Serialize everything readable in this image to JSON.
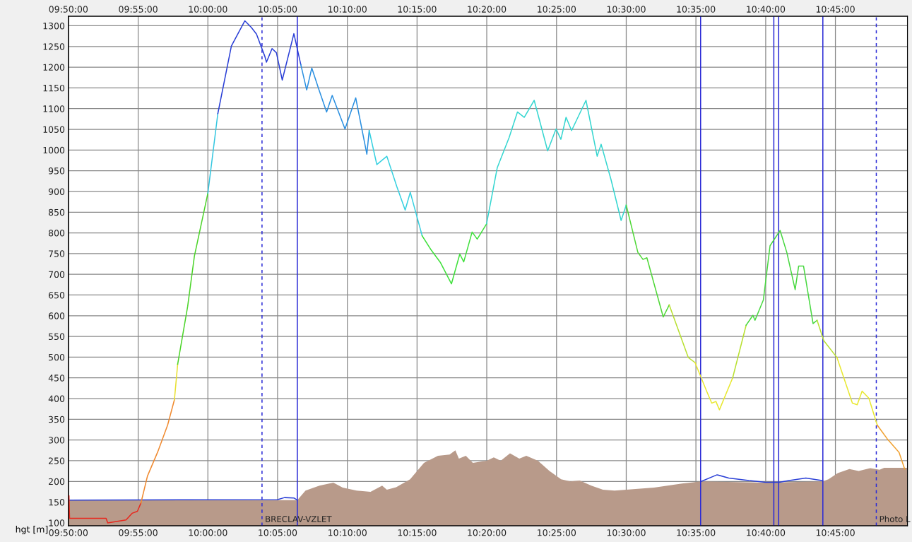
{
  "chart_data": {
    "type": "line",
    "ylabel": "hgt [m]",
    "xlim": [
      9.8333,
      10.8361
    ],
    "ylim": [
      93,
      1323
    ],
    "xticks": [
      {
        "value": 9.8333,
        "label": "09:50:00"
      },
      {
        "value": 9.9167,
        "label": "09:55:00"
      },
      {
        "value": 10.0,
        "label": "10:00:00"
      },
      {
        "value": 10.0833,
        "label": "10:05:00"
      },
      {
        "value": 10.1667,
        "label": "10:10:00"
      },
      {
        "value": 10.25,
        "label": "10:15:00"
      },
      {
        "value": 10.3333,
        "label": "10:20:00"
      },
      {
        "value": 10.4167,
        "label": "10:25:00"
      },
      {
        "value": 10.5,
        "label": "10:30:00"
      },
      {
        "value": 10.5833,
        "label": "10:35:00"
      },
      {
        "value": 10.6667,
        "label": "10:40:00"
      },
      {
        "value": 10.75,
        "label": "10:45:00"
      }
    ],
    "x2lim": [
      9.8333,
      10.8361
    ],
    "x2ticks": [
      {
        "value": 9.8333,
        "label": "09:50:00"
      },
      {
        "value": 9.9167,
        "label": "09:55:00"
      },
      {
        "value": 10.0,
        "label": "10:00:00"
      },
      {
        "value": 10.0833,
        "label": "10:05:00"
      },
      {
        "value": 10.1667,
        "label": "10:10:00"
      },
      {
        "value": 10.25,
        "label": "10:15:00"
      },
      {
        "value": 10.3333,
        "label": "10:20:00"
      },
      {
        "value": 10.4167,
        "label": "10:25:00"
      },
      {
        "value": 10.5,
        "label": "10:30:00"
      },
      {
        "value": 10.5833,
        "label": "10:35:00"
      },
      {
        "value": 10.6667,
        "label": "10:40:00"
      },
      {
        "value": 10.75,
        "label": "10:45:00"
      }
    ],
    "yticks": [
      100,
      150,
      200,
      250,
      300,
      350,
      400,
      450,
      500,
      550,
      600,
      650,
      700,
      750,
      800,
      850,
      900,
      950,
      1000,
      1050,
      1100,
      1150,
      1200,
      1250,
      1300
    ],
    "grid": true,
    "line_style": "solid",
    "marker": "none",
    "series": [
      {
        "type": "area",
        "color": "#b89a8a",
        "x": [
          9.8333,
          10.1069,
          10.1167,
          10.1333,
          10.15,
          10.1611,
          10.1778,
          10.1944,
          10.2083,
          10.2139,
          10.225,
          10.2417,
          10.2583,
          10.275,
          10.2889,
          10.2958,
          10.3,
          10.3083,
          10.3167,
          10.3333,
          10.3417,
          10.35,
          10.3611,
          10.3722,
          10.3806,
          10.3944,
          10.4083,
          10.4222,
          10.4333,
          10.4444,
          10.4583,
          10.4722,
          10.4861,
          10.5,
          10.5333,
          10.5667,
          10.5897,
          10.6667,
          10.7347,
          10.7417,
          10.7528,
          10.7667,
          10.7778,
          10.7917,
          10.8028,
          10.8083,
          10.8361
        ],
        "values": [
          155,
          155,
          178,
          190,
          197,
          185,
          178,
          175,
          190,
          180,
          186,
          205,
          245,
          262,
          265,
          275,
          255,
          262,
          245,
          250,
          258,
          250,
          268,
          255,
          262,
          250,
          225,
          205,
          200,
          202,
          190,
          180,
          178,
          180,
          185,
          195,
          200,
          197,
          200,
          205,
          220,
          230,
          225,
          232,
          228,
          233,
          233
        ]
      },
      {
        "color": "#2a3fd6",
        "x": [
          9.8333,
          10.0833,
          10.0917,
          10.1028,
          10.1069
        ],
        "values": [
          155,
          156,
          161,
          160,
          155
        ]
      },
      {
        "type": "line",
        "color": "#2a3fd6",
        "x": [
          10.5897,
          10.6086,
          10.6225,
          10.6467,
          10.6667,
          10.6828,
          10.6947,
          10.7147,
          10.7347
        ],
        "values": [
          200,
          216,
          208,
          202,
          198,
          198,
          202,
          208,
          202
        ]
      },
      {
        "type": "line",
        "color": "#e8281e",
        "x": [
          9.834,
          9.8347,
          9.8783,
          9.8803,
          9.9022,
          9.9094,
          9.9158,
          9.92
        ],
        "values": [
          165,
          111,
          111,
          100,
          107,
          123,
          128,
          148
        ]
      },
      {
        "type": "line",
        "color": "#f08a30",
        "x": [
          9.92,
          9.9278,
          9.94,
          9.9519,
          9.96
        ],
        "values": [
          148,
          213,
          271,
          336,
          397
        ]
      },
      {
        "type": "line",
        "color": "#e8e030",
        "x": [
          9.96,
          9.9639
        ],
        "values": [
          397,
          483
        ]
      },
      {
        "type": "line",
        "color": "#4cd42a",
        "x": [
          9.9639,
          9.9758,
          9.9839,
          10.0
        ],
        "values": [
          483,
          622,
          744,
          896
        ]
      },
      {
        "type": "line",
        "color": "#33c6e0",
        "x": [
          10.0,
          10.0119
        ],
        "values": [
          896,
          1088
        ]
      },
      {
        "type": "line",
        "color": "#2a3fd6",
        "x": [
          10.0119,
          10.0281,
          10.0442,
          10.0519,
          10.0581,
          10.0681,
          10.07,
          10.0767,
          10.0819,
          10.0889,
          10.1028,
          10.1111
        ],
        "values": [
          1088,
          1251,
          1312,
          1296,
          1280,
          1226,
          1212,
          1245,
          1235,
          1169,
          1281,
          1206
        ]
      },
      {
        "type": "line",
        "color": "#2a8fe0",
        "x": [
          10.1111,
          10.1181,
          10.1242,
          10.1322,
          10.1419,
          10.1486,
          10.1639,
          10.1767,
          10.19,
          10.1928
        ],
        "values": [
          1206,
          1145,
          1198,
          1149,
          1092,
          1132,
          1051,
          1126,
          990,
          1047
        ]
      },
      {
        "type": "line",
        "color": "#35d0e0",
        "x": [
          10.1928,
          10.2019,
          10.2139,
          10.2258,
          10.2358,
          10.2419,
          10.2561
        ],
        "values": [
          1047,
          965,
          985,
          912,
          855,
          898,
          793
        ]
      },
      {
        "type": "line",
        "color": "#3ee03a",
        "x": [
          10.2561,
          10.2661,
          10.2781,
          10.2911,
          10.3011,
          10.3058,
          10.3158,
          10.3219,
          10.3331
        ],
        "values": [
          793,
          761,
          728,
          677,
          749,
          730,
          802,
          785,
          822
        ]
      },
      {
        "type": "line",
        "color": "#35d6d0",
        "x": [
          10.3331,
          10.3458,
          10.36,
          10.37,
          10.3781,
          10.39,
          10.4061,
          10.4161,
          10.4219,
          10.4281,
          10.4347,
          10.4519,
          10.4653,
          10.47,
          10.4819,
          10.4939,
          10.5
        ],
        "values": [
          822,
          957,
          1030,
          1092,
          1079,
          1120,
          998,
          1051,
          1026,
          1079,
          1047,
          1120,
          985,
          1014,
          928,
          830,
          867
        ]
      },
      {
        "type": "line",
        "color": "#50d838",
        "x": [
          10.5,
          10.5139,
          10.52,
          10.5247,
          10.5442,
          10.5514
        ],
        "values": [
          867,
          753,
          736,
          740,
          597,
          626
        ]
      },
      {
        "type": "line",
        "color": "#b8e030",
        "x": [
          10.5514,
          10.5742,
          10.5822
        ],
        "values": [
          626,
          499,
          487
        ]
      },
      {
        "type": "line",
        "color": "#e8e830",
        "x": [
          10.5822,
          10.5961,
          10.6022,
          10.6072,
          10.6114,
          10.6272
        ],
        "values": [
          487,
          418,
          389,
          393,
          373,
          450
        ]
      },
      {
        "type": "line",
        "color": "#b8e030",
        "x": [
          10.6272,
          10.6433
        ],
        "values": [
          450,
          577
        ]
      },
      {
        "type": "line",
        "color": "#48d840",
        "x": [
          10.6433,
          10.6514,
          10.6539,
          10.6639,
          10.6719,
          10.6839,
          10.6919,
          10.7019,
          10.7061,
          10.7119,
          10.7233,
          10.7281
        ],
        "values": [
          577,
          601,
          589,
          638,
          769,
          806,
          753,
          663,
          720,
          720,
          581,
          589
        ]
      },
      {
        "type": "line",
        "color": "#b8e030",
        "x": [
          10.7281,
          10.7361,
          10.7519
        ],
        "values": [
          589,
          540,
          499
        ]
      },
      {
        "type": "line",
        "color": "#e8e830",
        "x": [
          10.7519,
          10.7703,
          10.7761,
          10.7819,
          10.79,
          10.8
        ],
        "values": [
          499,
          389,
          385,
          418,
          401,
          336
        ]
      },
      {
        "type": "line",
        "color": "#f0a030",
        "x": [
          10.8,
          10.8119,
          10.8261,
          10.8328
        ],
        "values": [
          336,
          303,
          270,
          230
        ]
      }
    ],
    "ref_lines": [
      {
        "axis": "x",
        "value": 10.0647,
        "label": "BRECLAV-VZLET",
        "color": "#2a2ad6",
        "line_style": "dashed"
      },
      {
        "axis": "x",
        "value": 10.1069,
        "label": null,
        "color": "#2a2ad6",
        "line_style": "solid"
      },
      {
        "axis": "x",
        "value": 10.5889,
        "label": null,
        "color": "#2a2ad6",
        "line_style": "solid"
      },
      {
        "axis": "x",
        "value": 10.6764,
        "label": null,
        "color": "#2a2ad6",
        "line_style": "solid"
      },
      {
        "axis": "x",
        "value": 10.6822,
        "label": null,
        "color": "#2a2ad6",
        "line_style": "solid"
      },
      {
        "axis": "x",
        "value": 10.735,
        "label": null,
        "color": "#2a2ad6",
        "line_style": "solid"
      },
      {
        "axis": "x",
        "value": 10.7989,
        "label": "Photo L",
        "color": "#2a2ad6",
        "line_style": "dashed"
      }
    ]
  }
}
